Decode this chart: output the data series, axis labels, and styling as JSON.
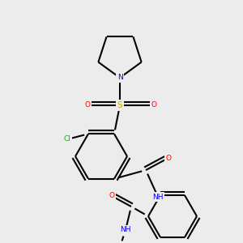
{
  "bg_color": "#ececec",
  "bond_color": "#000000",
  "bond_width": 1.5,
  "colors": {
    "N": "#0000ff",
    "O": "#ff0000",
    "S": "#ccaa00",
    "Cl": "#00cc00",
    "C": "#000000",
    "H": "#888888"
  },
  "font_size": 7,
  "img_size": [
    300,
    300
  ]
}
